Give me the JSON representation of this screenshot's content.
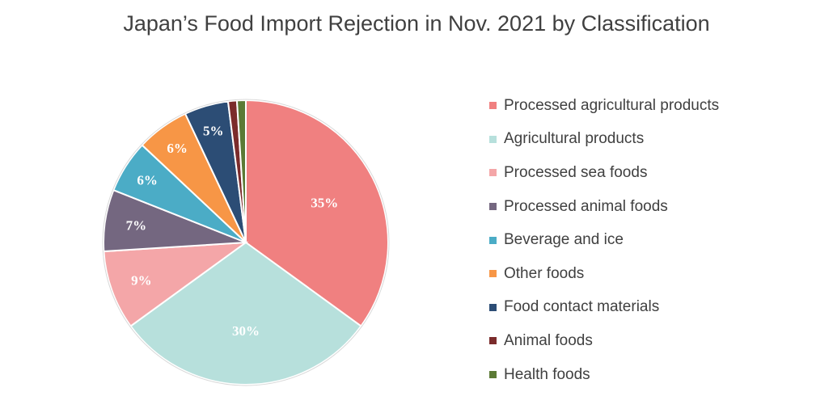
{
  "chart_data": {
    "type": "pie",
    "title": "Japan’s Food Import Rejection in Nov. 2021 by Classification",
    "legend_position": "right",
    "slices": [
      {
        "name": "Processed agricultural products",
        "value": 35,
        "label": "35%",
        "color": "#f08080"
      },
      {
        "name": "Agricultural products",
        "value": 30,
        "label": "30%",
        "color": "#b7e0dc"
      },
      {
        "name": "Processed sea foods",
        "value": 9,
        "label": "9%",
        "color": "#f4a6a8"
      },
      {
        "name": "Processed animal foods",
        "value": 7,
        "label": "7%",
        "color": "#746780"
      },
      {
        "name": "Beverage and ice",
        "value": 6,
        "label": "6%",
        "color": "#4bacc6"
      },
      {
        "name": "Other foods",
        "value": 6,
        "label": "6%",
        "color": "#f79646"
      },
      {
        "name": "Food contact materials",
        "value": 5,
        "label": "5%",
        "color": "#2c4d75"
      },
      {
        "name": "Animal foods",
        "value": 1,
        "label": "",
        "color": "#7b2c2c"
      },
      {
        "name": "Health foods",
        "value": 1,
        "label": "",
        "color": "#5b7a35"
      }
    ]
  }
}
